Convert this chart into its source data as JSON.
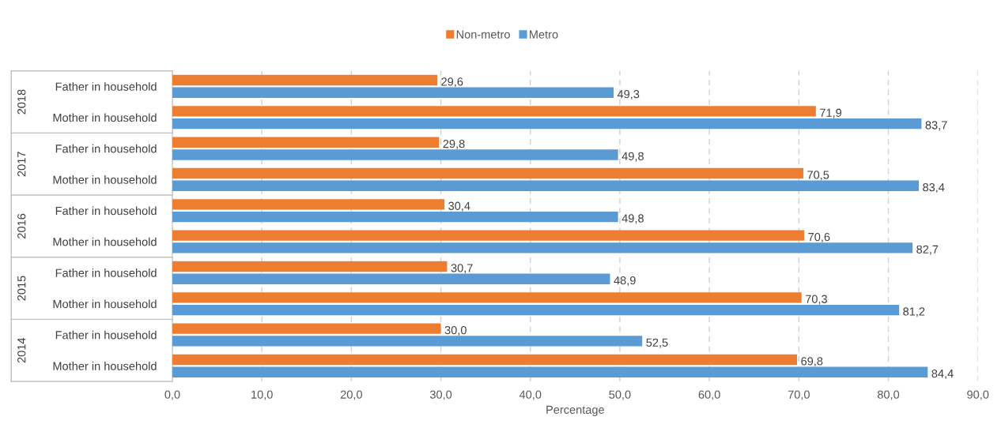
{
  "chart_data": {
    "type": "bar",
    "orientation": "horizontal",
    "categories": [
      "Father in household",
      "Mother in household",
      "Father in household",
      "Mother in household",
      "Father in household",
      "Mother in household",
      "Father in household",
      "Mother in household",
      "Father in household",
      "Mother in household"
    ],
    "series": [
      {
        "name": "Non-metro",
        "color": "#ed7d31",
        "values": [
          29.6,
          71.9,
          29.8,
          70.5,
          30.4,
          70.6,
          30.7,
          70.3,
          30.0,
          69.8
        ],
        "value_labels": [
          "29,6",
          "71,9",
          "29,8",
          "70,5",
          "30,4",
          "70,6",
          "30,7",
          "70,3",
          "30,0",
          "69,8"
        ]
      },
      {
        "name": "Metro",
        "color": "#5b9bd5",
        "values": [
          49.3,
          83.7,
          49.8,
          83.4,
          49.8,
          82.7,
          48.9,
          81.2,
          52.5,
          84.4
        ],
        "value_labels": [
          "49,3",
          "83,7",
          "49,8",
          "83,4",
          "49,8",
          "82,7",
          "48,9",
          "81,2",
          "52,5",
          "84,4"
        ]
      }
    ],
    "annotations": [
      "2018",
      "2017",
      "2016",
      "2015",
      "2014"
    ],
    "xlabel": "Percentage",
    "xlim": [
      0,
      90
    ],
    "xticks": [
      {
        "value": 0,
        "label": "0,0"
      },
      {
        "value": 10,
        "label": "10,0"
      },
      {
        "value": 20,
        "label": "20,0"
      },
      {
        "value": 30,
        "label": "30,0"
      },
      {
        "value": 40,
        "label": "40,0"
      },
      {
        "value": 50,
        "label": "50,0"
      },
      {
        "value": 60,
        "label": "60,0"
      },
      {
        "value": 70,
        "label": "70,0"
      },
      {
        "value": 80,
        "label": "80,0"
      },
      {
        "value": 90,
        "label": "90,0"
      }
    ],
    "grid": "x",
    "line_style": "dashed",
    "legend": "top"
  }
}
